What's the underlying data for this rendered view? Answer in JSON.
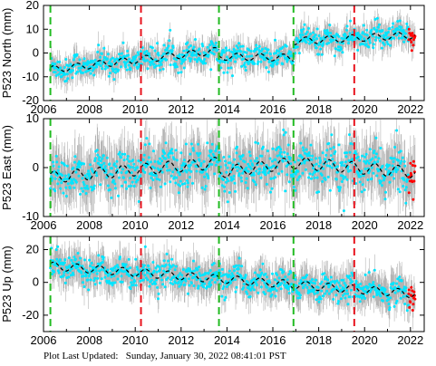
{
  "footer": {
    "label": "Plot Last Updated:",
    "timestamp": "Sunday, January 30, 2022 08:41:01 PST"
  },
  "colors": {
    "data": "#00e5ff",
    "error_bars": "#b4b4b4",
    "model": "#000000",
    "rapid": "#ff0000",
    "equipment_change": "#22bb22",
    "earthquake_offset": "#e8141e"
  },
  "chart_data": [
    {
      "type": "scatter",
      "ylabel": "P523 North (mm)",
      "xlim": [
        2006,
        2022.6
      ],
      "ylim": [
        -20,
        20
      ],
      "yticks": [
        -20,
        -10,
        0,
        10,
        20
      ],
      "xticks": [
        "2006",
        "2008",
        "2010",
        "2012",
        "2014",
        "2016",
        "2018",
        "2020",
        "2022"
      ],
      "xtick_labels_shown": true,
      "green_lines": [
        2006.3,
        2013.65,
        2016.9
      ],
      "red_lines": [
        2010.25,
        2019.55
      ],
      "model_trend": [
        {
          "from": 2006.3,
          "to": 2013.65,
          "start": -7,
          "end": 1
        },
        {
          "from": 2013.65,
          "to": 2016.9,
          "start": -1.5,
          "end": -2
        },
        {
          "from": 2016.9,
          "to": 2022.2,
          "start": 5,
          "end": 7.5
        }
      ],
      "seasonal_amplitude": 1.5,
      "scatter": 2.5,
      "error_bar": 4.5,
      "series_end": 2022.2
    },
    {
      "type": "scatter",
      "ylabel": "P523 East (mm)",
      "xlim": [
        2006,
        2022.6
      ],
      "ylim": [
        -10,
        10
      ],
      "yticks": [
        -10,
        0,
        10
      ],
      "xticks": [
        "2006",
        "2008",
        "2010",
        "2012",
        "2014",
        "2016",
        "2018",
        "2020",
        "2022"
      ],
      "xtick_labels_shown": true,
      "green_lines": [
        2006.3,
        2013.65,
        2016.9
      ],
      "red_lines": [
        2010.25,
        2019.55
      ],
      "model_trend": [
        {
          "from": 2006.3,
          "to": 2013.65,
          "start": -2,
          "end": 1
        },
        {
          "from": 2013.65,
          "to": 2016.9,
          "start": -1,
          "end": 1
        },
        {
          "from": 2016.9,
          "to": 2022.2,
          "start": 1,
          "end": -1
        }
      ],
      "seasonal_amplitude": 1.2,
      "scatter": 2.2,
      "error_bar": 4.5,
      "series_end": 2022.2
    },
    {
      "type": "scatter",
      "ylabel": "P523 Up (mm)",
      "xlim": [
        2006,
        2022.6
      ],
      "ylim": [
        -30,
        28
      ],
      "yticks": [
        -20,
        0,
        20
      ],
      "xticks": [
        "2006",
        "2008",
        "2010",
        "2012",
        "2014",
        "2016",
        "2018",
        "2020",
        "2022"
      ],
      "xtick_labels_shown": true,
      "green_lines": [
        2006.3,
        2013.65,
        2016.9
      ],
      "red_lines": [
        2010.25,
        2019.55
      ],
      "model_trend": [
        {
          "from": 2006.3,
          "to": 2022.2,
          "start": 10,
          "end": -7
        }
      ],
      "seasonal_amplitude": 2.5,
      "scatter": 4,
      "error_bar": 9,
      "series_end": 2022.2
    }
  ]
}
